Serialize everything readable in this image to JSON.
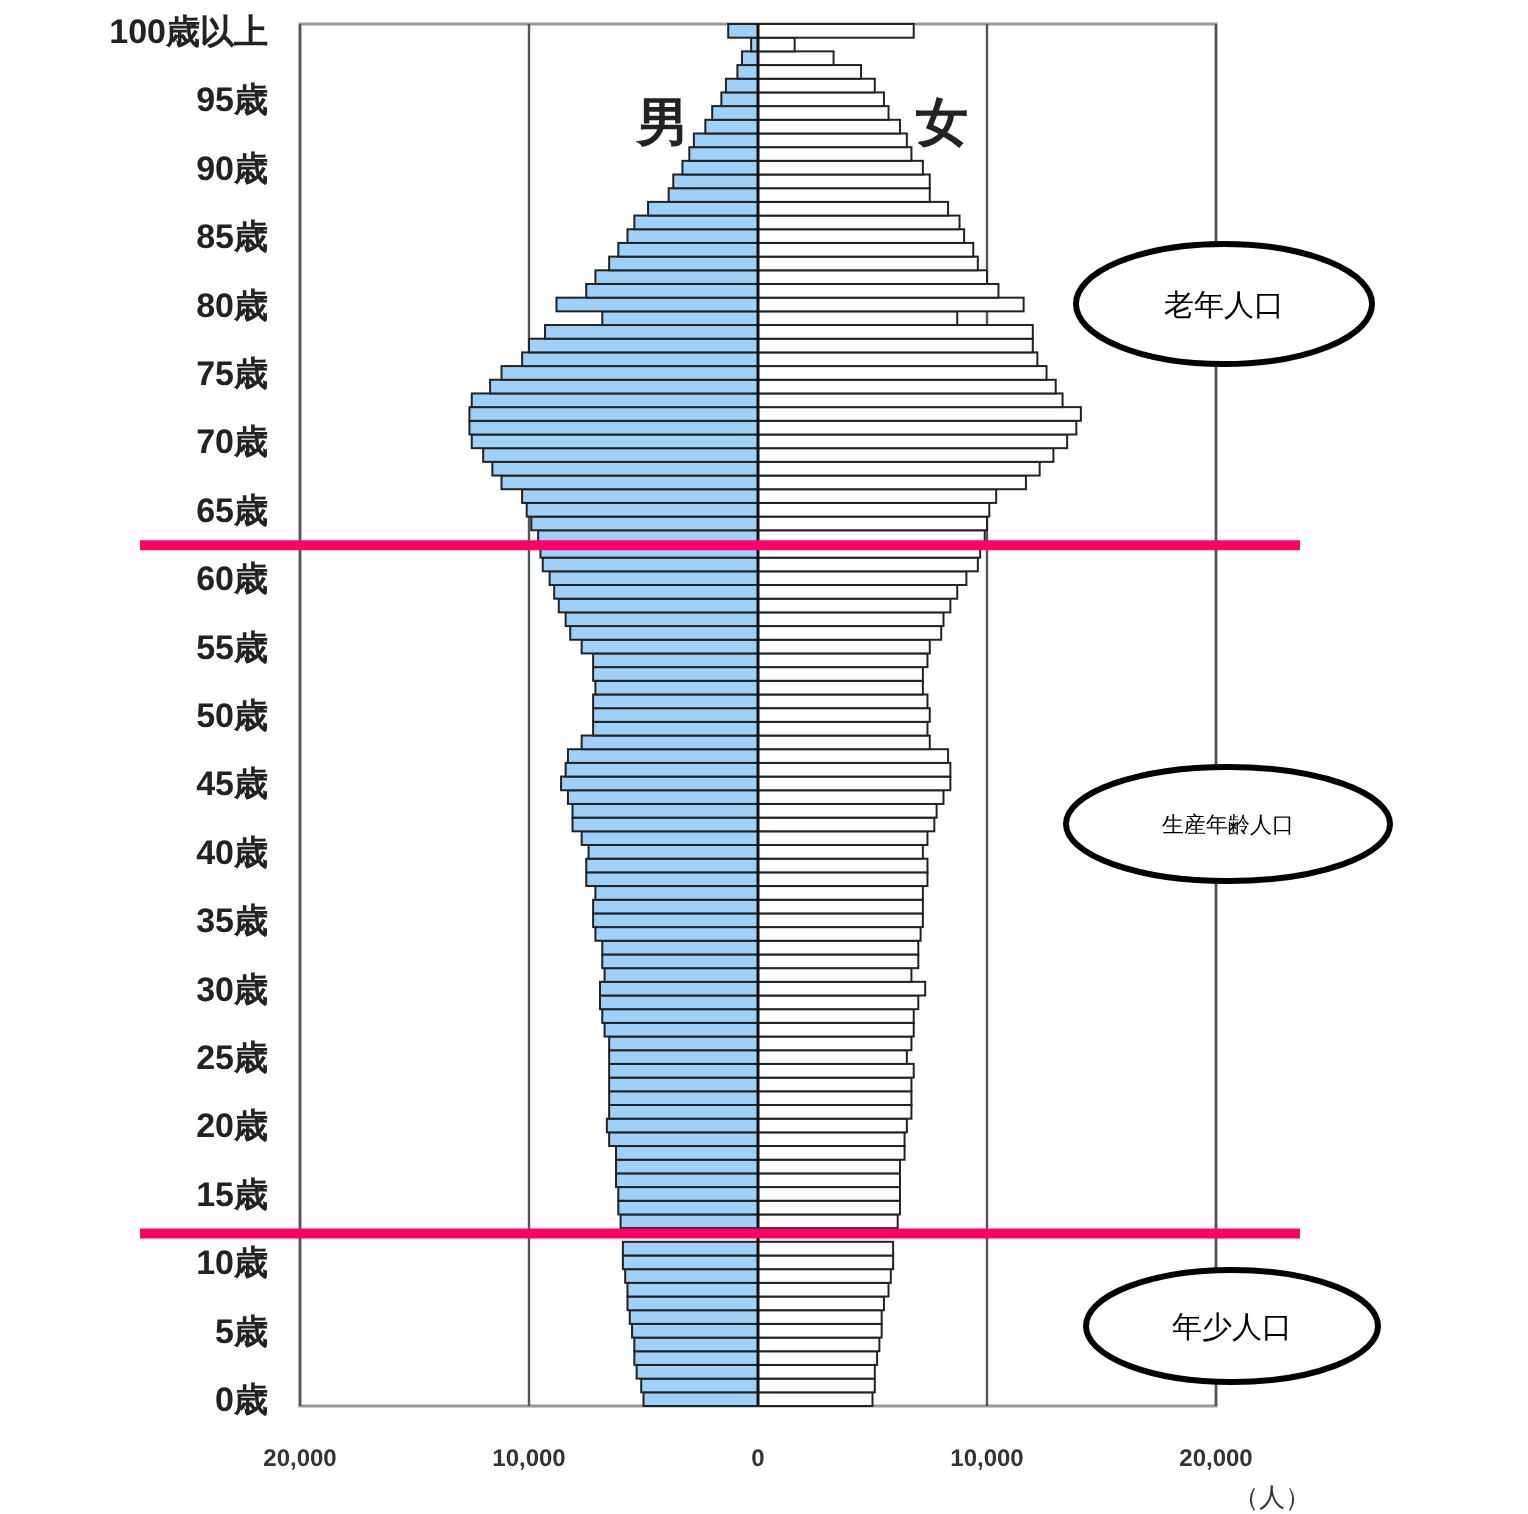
{
  "chart_data": {
    "type": "bar",
    "orientation": "horizontal",
    "stacked": true,
    "x": [
      0,
      1,
      2,
      3,
      4,
      5,
      6,
      7,
      8,
      9,
      10,
      11,
      12,
      13,
      14,
      15,
      16,
      17,
      18,
      19,
      20,
      21,
      22,
      23,
      24,
      25,
      26,
      27,
      28,
      29,
      30,
      31,
      32,
      33,
      34,
      35,
      36,
      37,
      38,
      39,
      40,
      41,
      42,
      43,
      44,
      45,
      46,
      47,
      48,
      49,
      50,
      51,
      52,
      53,
      54,
      55,
      56,
      57,
      58,
      59,
      60,
      61,
      62,
      63,
      64,
      65,
      66,
      67,
      68,
      69,
      70,
      71,
      72,
      73,
      74,
      75,
      76,
      77,
      78,
      79,
      80,
      81,
      82,
      83,
      84,
      85,
      86,
      87,
      88,
      89,
      90,
      91,
      92,
      93,
      94,
      95,
      96,
      97,
      98,
      99,
      100
    ],
    "series": [
      {
        "name": "男",
        "color": "#9fd0f7",
        "values": [
          -5000,
          -5100,
          -5300,
          -5400,
          -5400,
          -5500,
          -5600,
          -5700,
          -5700,
          -5800,
          -5900,
          -5900,
          null,
          -6000,
          -6100,
          -6100,
          -6200,
          -6200,
          -6200,
          -6500,
          -6600,
          -6500,
          -6500,
          -6500,
          -6500,
          -6500,
          -6500,
          -6700,
          -6800,
          -6900,
          -6900,
          -6700,
          -6800,
          -6800,
          -7100,
          -7200,
          -7200,
          -7100,
          -7500,
          -7500,
          -7400,
          -7700,
          -8100,
          -8100,
          -8300,
          -8600,
          -8400,
          -8300,
          -7700,
          -7200,
          -7200,
          -7200,
          -7100,
          -7200,
          -7200,
          -7700,
          -8200,
          -8400,
          -8700,
          -8900,
          -9100,
          -9400,
          -9500,
          -9600,
          -9900,
          -10100,
          -10300,
          -11200,
          -11600,
          -12000,
          -12500,
          -12600,
          -12600,
          -12500,
          -11700,
          -11200,
          -10300,
          -10000,
          -9300,
          -6800,
          -8800,
          -7500,
          -7100,
          -6500,
          -6100,
          -5700,
          -5400,
          -4800,
          -3900,
          -3700,
          -3300,
          -3000,
          -2800,
          -2300,
          -2000,
          -1600,
          -1400,
          -900,
          -700,
          -300,
          -1300
        ]
      },
      {
        "name": "女",
        "color": "#ffffff",
        "values": [
          5000,
          5100,
          5100,
          5200,
          5300,
          5400,
          5400,
          5500,
          5700,
          5800,
          5900,
          5900,
          null,
          6100,
          6200,
          6200,
          6200,
          6200,
          6400,
          6400,
          6500,
          6700,
          6700,
          6700,
          6800,
          6500,
          6700,
          6800,
          6800,
          7000,
          7300,
          6700,
          7000,
          7000,
          7100,
          7200,
          7200,
          7200,
          7400,
          7400,
          7200,
          7400,
          7700,
          7800,
          8100,
          8400,
          8400,
          8300,
          7500,
          7400,
          7500,
          7400,
          7200,
          7200,
          7400,
          7500,
          8000,
          8100,
          8400,
          8700,
          9100,
          9600,
          9700,
          9900,
          10000,
          10100,
          10400,
          11700,
          12300,
          12900,
          13500,
          13900,
          14100,
          13300,
          13000,
          12600,
          12200,
          12000,
          12000,
          8700,
          11600,
          10500,
          10000,
          9600,
          9400,
          9000,
          8800,
          8300,
          7500,
          7500,
          7200,
          6700,
          6500,
          6200,
          5700,
          5500,
          5100,
          4500,
          3300,
          1600,
          6800
        ]
      }
    ],
    "xlim": [
      -20000,
      20000
    ],
    "xticks": [
      {
        "value": -20000,
        "label": "20,000"
      },
      {
        "value": -10000,
        "label": "10,000"
      },
      0,
      {
        "value": 10000,
        "label": "10,000"
      },
      {
        "value": 20000,
        "label": "20,000"
      }
    ],
    "ylim": [
      -0.5,
      100.5
    ],
    "yticks": [
      {
        "value": 0,
        "label": "0歳"
      },
      {
        "value": 5,
        "label": "5歳"
      },
      {
        "value": 10,
        "label": "10歳"
      },
      {
        "value": 15,
        "label": "15歳"
      },
      {
        "value": 20,
        "label": "20歳"
      },
      {
        "value": 25,
        "label": "25歳"
      },
      {
        "value": 30,
        "label": "30歳"
      },
      {
        "value": 35,
        "label": "35歳"
      },
      {
        "value": 40,
        "label": "40歳"
      },
      {
        "value": 45,
        "label": "45歳"
      },
      {
        "value": 50,
        "label": "50歳"
      },
      {
        "value": 55,
        "label": "55歳"
      },
      {
        "value": 60,
        "label": "60歳"
      },
      {
        "value": 65,
        "label": "65歳"
      },
      {
        "value": 70,
        "label": "70歳"
      },
      {
        "value": 75,
        "label": "75歳"
      },
      {
        "value": 80,
        "label": "80歳"
      },
      {
        "value": 85,
        "label": "85歳"
      },
      {
        "value": 90,
        "label": "90歳"
      },
      {
        "value": 95,
        "label": "95歳"
      },
      {
        "value": 100,
        "label": "100歳以上"
      }
    ],
    "xlabel": "（人）",
    "grid": "x",
    "ref_lines": [
      {
        "axis": "y",
        "value": 62.4,
        "color": "#ff0066"
      },
      {
        "axis": "y",
        "value": 12.1,
        "color": "#ff0066"
      }
    ],
    "annotations": [
      "老年人口",
      "生産年齢人口",
      "年少人口"
    ]
  }
}
